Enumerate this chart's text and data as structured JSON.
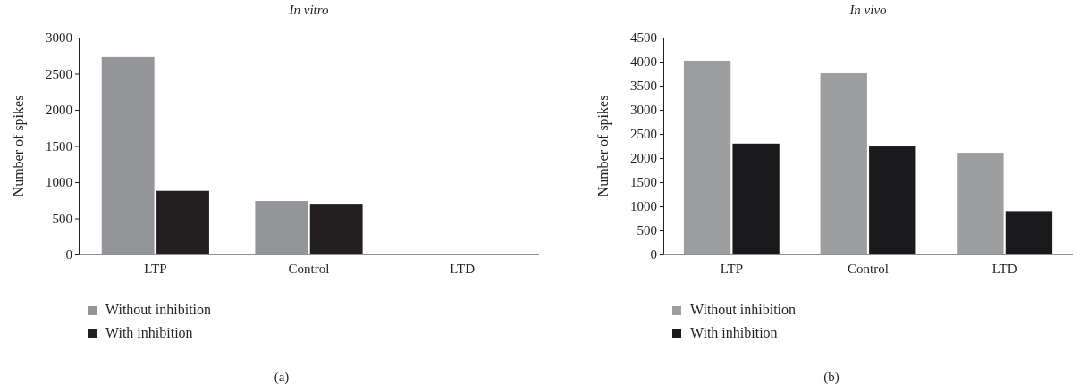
{
  "chart_data": [
    {
      "type": "bar",
      "title": "In vitro",
      "ylabel": "Number of spikes",
      "categories": [
        "LTP",
        "Control",
        "LTD"
      ],
      "series": [
        {
          "name": "Without inhibition",
          "color": "#939598",
          "values": [
            2730,
            740,
            0
          ]
        },
        {
          "name": "With inhibition",
          "color": "#231f20",
          "values": [
            880,
            690,
            0
          ]
        }
      ],
      "ylim": [
        0,
        3000
      ],
      "yticks": [
        0,
        500,
        1000,
        1500,
        2000,
        2500,
        3000
      ],
      "legend": "bottom left",
      "annotations": [
        "(a)"
      ]
    },
    {
      "type": "bar",
      "title": "In vivo",
      "ylabel": "Number of spikes",
      "categories": [
        "LTP",
        "Control",
        "LTD"
      ],
      "series": [
        {
          "name": "Without inhibition",
          "color": "#9d9ea0",
          "values": [
            4020,
            3760,
            2110
          ]
        },
        {
          "name": "With inhibition",
          "color": "#1a1a1c",
          "values": [
            2300,
            2240,
            900
          ]
        }
      ],
      "ylim": [
        0,
        4500
      ],
      "yticks": [
        0,
        500,
        1000,
        1500,
        2000,
        2500,
        3000,
        3500,
        4000,
        4500
      ],
      "legend": "bottom left",
      "annotations": [
        "(b)"
      ]
    }
  ]
}
